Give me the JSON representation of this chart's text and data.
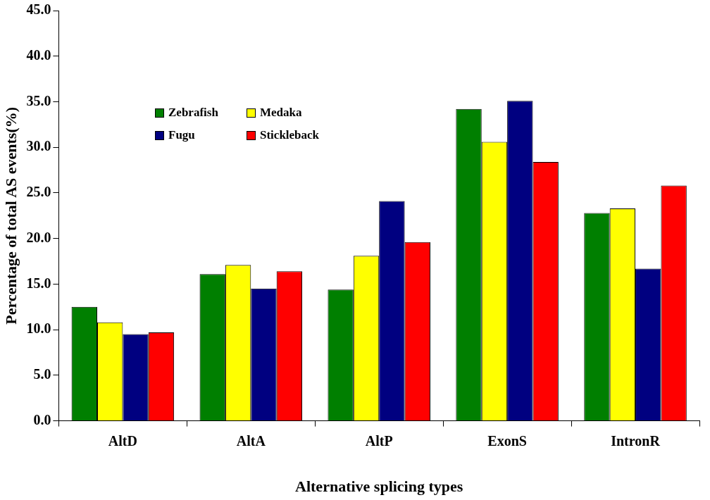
{
  "chart_data": {
    "type": "bar",
    "xlabel": "Alternative splicing types",
    "ylabel": "Percentage of total AS events(%)",
    "categories": [
      "AltD",
      "AltA",
      "AltP",
      "ExonS",
      "IntronR"
    ],
    "series": [
      {
        "name": "Zebrafish",
        "color": "#007f00",
        "values": [
          12.5,
          16.1,
          14.4,
          34.2,
          22.8
        ]
      },
      {
        "name": "Medaka",
        "color": "#ffff00",
        "values": [
          10.8,
          17.1,
          18.1,
          30.6,
          23.3
        ]
      },
      {
        "name": "Fugu",
        "color": "#000080",
        "values": [
          9.5,
          14.5,
          24.1,
          35.1,
          16.7
        ]
      },
      {
        "name": "Stickleback",
        "color": "#ff0000",
        "values": [
          9.7,
          16.4,
          19.6,
          28.4,
          25.8
        ]
      }
    ],
    "ylim": [
      0,
      45
    ],
    "yticks": [
      {
        "value": 0,
        "label": "0.0"
      },
      {
        "value": 5,
        "label": "5.0"
      },
      {
        "value": 10,
        "label": "10.0"
      },
      {
        "value": 15,
        "label": "15.0"
      },
      {
        "value": 20,
        "label": "20.0"
      },
      {
        "value": 25,
        "label": "25.0"
      },
      {
        "value": 30,
        "label": "30.0"
      },
      {
        "value": 35,
        "label": "35.0"
      },
      {
        "value": 40,
        "label": "40.0"
      },
      {
        "value": 45,
        "label": "45.0"
      }
    ],
    "grid": false,
    "legend": "top left"
  }
}
